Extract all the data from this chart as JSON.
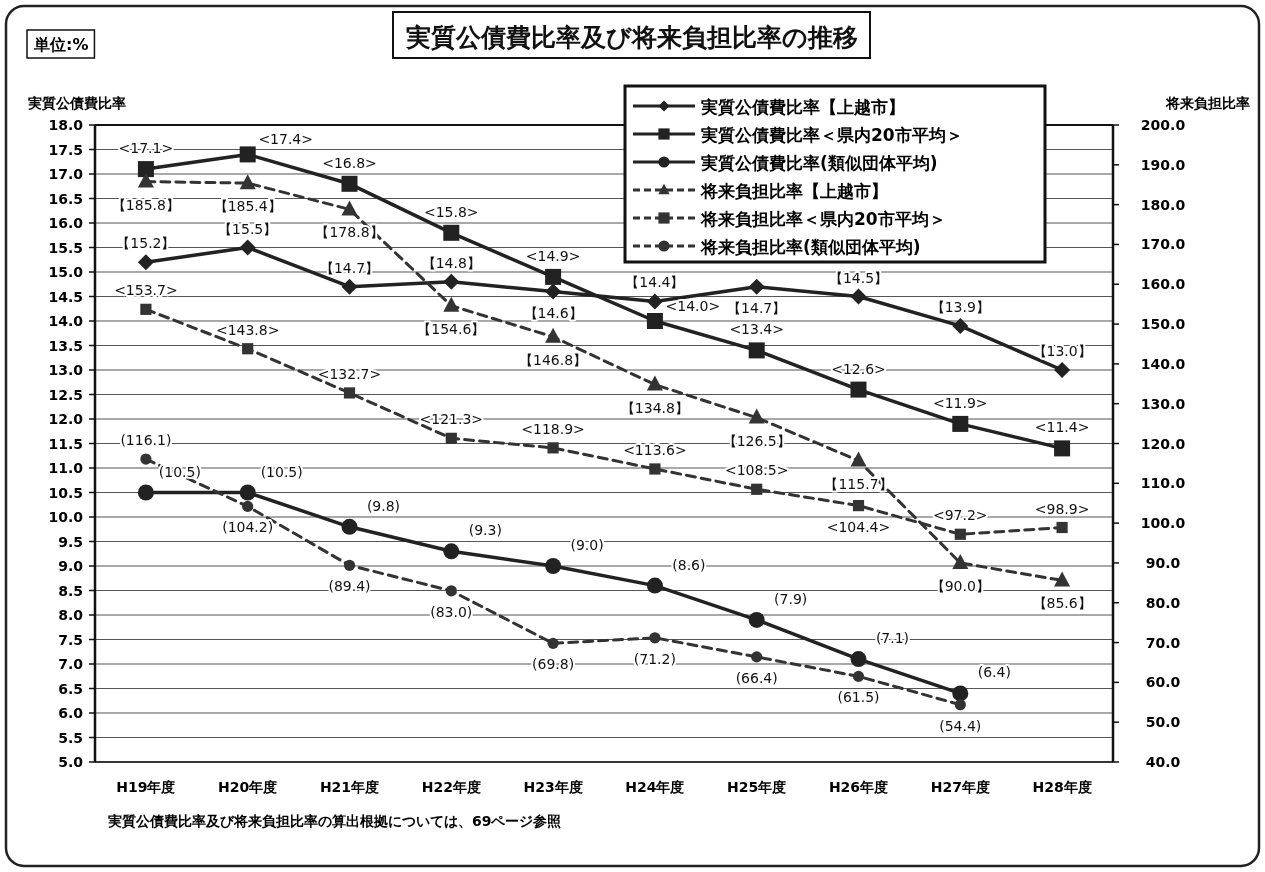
{
  "chart_data": {
    "type": "line",
    "title": "実質公債費比率及び将来負担比率の推移",
    "ylabel": "実質公債費比率",
    "y2label": "将来負担比率",
    "annotations": [
      "単位:%",
      "実質公債費比率及び将来負担比率の算出根拠については、69ページ参照"
    ],
    "categories": [
      "H19年度",
      "H20年度",
      "H21年度",
      "H22年度",
      "H23年度",
      "H24年度",
      "H25年度",
      "H26年度",
      "H27年度",
      "H28年度"
    ],
    "ylim": [
      5,
      18
    ],
    "yticks": [
      {
        "value": 5,
        "label": "5.0"
      },
      {
        "value": 5.5,
        "label": "5.5"
      },
      {
        "value": 6,
        "label": "6.0"
      },
      {
        "value": 6.5,
        "label": "6.5"
      },
      {
        "value": 7,
        "label": "7.0"
      },
      {
        "value": 7.5,
        "label": "7.5"
      },
      {
        "value": 8,
        "label": "8.0"
      },
      {
        "value": 8.5,
        "label": "8.5"
      },
      {
        "value": 9,
        "label": "9.0"
      },
      {
        "value": 9.5,
        "label": "9.5"
      },
      {
        "value": 10,
        "label": "10.0"
      },
      {
        "value": 10.5,
        "label": "10.5"
      },
      {
        "value": 11,
        "label": "11.0"
      },
      {
        "value": 11.5,
        "label": "11.5"
      },
      {
        "value": 12,
        "label": "12.0"
      },
      {
        "value": 12.5,
        "label": "12.5"
      },
      {
        "value": 13,
        "label": "13.0"
      },
      {
        "value": 13.5,
        "label": "13.5"
      },
      {
        "value": 14,
        "label": "14.0"
      },
      {
        "value": 14.5,
        "label": "14.5"
      },
      {
        "value": 15,
        "label": "15.0"
      },
      {
        "value": 15.5,
        "label": "15.5"
      },
      {
        "value": 16,
        "label": "16.0"
      },
      {
        "value": 16.5,
        "label": "16.5"
      },
      {
        "value": 17,
        "label": "17.0"
      },
      {
        "value": 17.5,
        "label": "17.5"
      },
      {
        "value": 18,
        "label": "18.0"
      }
    ],
    "y2lim": [
      40,
      200
    ],
    "y2ticks": [
      {
        "value": 40,
        "label": "40.0"
      },
      {
        "value": 50,
        "label": "50.0"
      },
      {
        "value": 60,
        "label": "60.0"
      },
      {
        "value": 70,
        "label": "70.0"
      },
      {
        "value": 80,
        "label": "80.0"
      },
      {
        "value": 90,
        "label": "90.0"
      },
      {
        "value": 100,
        "label": "100.0"
      },
      {
        "value": 110,
        "label": "110.0"
      },
      {
        "value": 120,
        "label": "120.0"
      },
      {
        "value": 130,
        "label": "130.0"
      },
      {
        "value": 140,
        "label": "140.0"
      },
      {
        "value": 150,
        "label": "150.0"
      },
      {
        "value": 160,
        "label": "160.0"
      },
      {
        "value": 170,
        "label": "170.0"
      },
      {
        "value": 180,
        "label": "180.0"
      },
      {
        "value": 190,
        "label": "190.0"
      },
      {
        "value": 200,
        "label": "200.0"
      }
    ],
    "grid": "y",
    "legend": "top right",
    "series": [
      {
        "name": "実質公債費比率【上越市】",
        "color": "#222222",
        "marker": "diamond",
        "line_style": "solid",
        "values": [
          15.2,
          15.5,
          14.7,
          14.8,
          14.6,
          14.4,
          14.7,
          14.5,
          13.9,
          13.0
        ],
        "value_labels": [
          "【15.2】",
          "【15.5】",
          "【14.7】",
          "【14.8】",
          "【14.6】",
          "【14.4】",
          "【14.7】",
          "【14.5】",
          "【13.9】",
          "【13.0】"
        ]
      },
      {
        "name": "実質公債費比率＜県内20市平均＞",
        "color": "#222222",
        "marker": "square",
        "line_style": "solid",
        "values": [
          17.1,
          17.4,
          16.8,
          15.8,
          14.9,
          14.0,
          13.4,
          12.6,
          11.9,
          11.4
        ],
        "value_labels": [
          "<17.1>",
          "<17.4>",
          "<16.8>",
          "<15.8>",
          "<14.9>",
          "<14.0>",
          "<13.4>",
          "<12.6>",
          "<11.9>",
          "<11.4>"
        ]
      },
      {
        "name": "実質公債費比率(類似団体平均)",
        "color": "#222222",
        "marker": "circle",
        "line_style": "solid",
        "values": [
          10.5,
          10.5,
          9.8,
          9.3,
          9.0,
          8.6,
          7.9,
          7.1,
          6.4,
          null
        ],
        "value_labels": [
          "(10.5)",
          "(10.5)",
          "(9.8)",
          "(9.3)",
          "(9.0)",
          "(8.6)",
          "(7.9)",
          "(7.1)",
          "(6.4)",
          null
        ]
      },
      {
        "name": "将来負担比率【上越市】",
        "color": "#333333",
        "marker": "triangle",
        "line_style": "dashed",
        "axis": "y2",
        "values": [
          185.8,
          185.4,
          178.8,
          154.6,
          146.8,
          134.8,
          126.5,
          115.7,
          90.0,
          85.6
        ],
        "value_labels": [
          "【185.8】",
          "【185.4】",
          "【178.8】",
          "【154.6】",
          "【146.8】",
          "【134.8】",
          "【126.5】",
          "【115.7】",
          "【90.0】",
          "【85.6】"
        ]
      },
      {
        "name": "将来負担比率＜県内20市平均＞",
        "color": "#333333",
        "marker": "square",
        "line_style": "dashed",
        "axis": "y2",
        "values": [
          153.7,
          143.8,
          132.7,
          121.3,
          118.9,
          113.6,
          108.5,
          104.4,
          97.2,
          98.9
        ],
        "value_labels": [
          "<153.7>",
          "<143.8>",
          "<132.7>",
          "<121.3>",
          "<118.9>",
          "<113.6>",
          "<108.5>",
          "<104.4>",
          "<97.2>",
          "<98.9>"
        ]
      },
      {
        "name": "将来負担比率(類似団体平均)",
        "color": "#333333",
        "marker": "circle",
        "line_style": "dashed",
        "axis": "y2",
        "values": [
          116.1,
          104.2,
          89.4,
          83.0,
          69.8,
          71.2,
          66.4,
          61.5,
          54.4,
          null
        ],
        "value_labels": [
          "(116.1)",
          "(104.2)",
          "(89.4)",
          "(83.0)",
          "(69.8)",
          "(71.2)",
          "(66.4)",
          "(61.5)",
          "(54.4)",
          null
        ]
      }
    ]
  }
}
